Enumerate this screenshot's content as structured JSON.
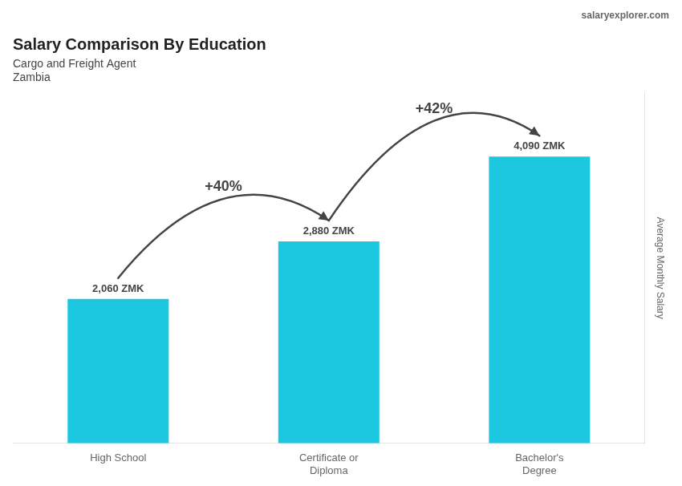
{
  "chart_data": {
    "type": "bar",
    "title": "Salary Comparison By Education",
    "subtitle": [
      "Cargo and Freight Agent",
      "Zambia"
    ],
    "caption": "salaryexplorer.com",
    "ylabel": "Average Monthly Salary",
    "categories": [
      "High School",
      "Certificate or\nDiploma",
      "Bachelor's\nDegree"
    ],
    "values": [
      2060,
      2880,
      4090
    ],
    "value_labels": [
      "2,060 ZMK",
      "2,880 ZMK",
      "4,090 ZMK"
    ],
    "data_labels": true,
    "color": "#1bc8e0",
    "annotations": [
      {
        "text": "+40%",
        "from": "High School",
        "to": "Certificate or\nDiploma"
      },
      {
        "text": "+42%",
        "from": "Certificate or\nDiploma",
        "to": "Bachelor's\nDegree"
      }
    ],
    "ylim": [
      0,
      5000
    ],
    "grid": false,
    "legend": false,
    "tick_labels": "x"
  }
}
